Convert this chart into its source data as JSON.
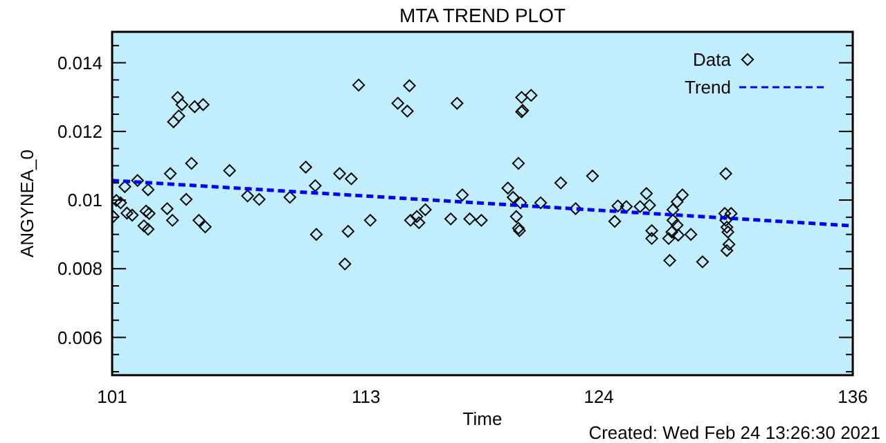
{
  "chart_data": {
    "type": "scatter",
    "title": "MTA TREND PLOT",
    "xlabel": "Time",
    "ylabel": "ANGYNEA_0",
    "annotations": [
      "Created: Wed Feb 24 13:26:30 2021"
    ],
    "xlim": [
      101,
      136
    ],
    "xticks": [
      101,
      113,
      124,
      136
    ],
    "ylim": [
      0.0049,
      0.0149
    ],
    "yticks": [
      {
        "value": 0.005,
        "label": null
      },
      {
        "value": 0.0055,
        "label": null
      },
      0.006,
      {
        "value": 0.0065,
        "label": null
      },
      {
        "value": 0.007,
        "label": null
      },
      {
        "value": 0.0075,
        "label": null
      },
      0.008,
      {
        "value": 0.0085,
        "label": null
      },
      {
        "value": 0.009,
        "label": null
      },
      {
        "value": 0.0095,
        "label": null
      },
      0.01,
      {
        "value": 0.0105,
        "label": null
      },
      {
        "value": 0.011,
        "label": null
      },
      {
        "value": 0.0115,
        "label": null
      },
      0.012,
      {
        "value": 0.0125,
        "label": null
      },
      {
        "value": 0.013,
        "label": null
      },
      {
        "value": 0.0135,
        "label": null
      },
      0.014,
      {
        "value": 0.0145,
        "label": null
      }
    ],
    "grid": false,
    "legend": "top right",
    "series": [
      {
        "name": "Data",
        "marker": "diamond",
        "color": "#000000",
        "x": [
          101.05,
          101.2,
          101.4,
          101.6,
          101.7,
          101.95,
          102.2,
          102.5,
          102.6,
          102.7,
          102.7,
          102.75,
          103.6,
          103.85,
          103.75,
          103.9,
          104.15,
          104.1,
          104.3,
          104.75,
          104.5,
          104.9,
          105.3,
          105.1,
          105.4,
          106.55,
          107.4,
          107.95,
          109.4,
          110.15,
          110.6,
          110.65,
          111.75,
          112.3,
          112.15,
          112.0,
          112.65,
          113.2,
          114.5,
          114.95,
          115.05,
          115.1,
          115.4,
          115.5,
          115.8,
          117.0,
          117.3,
          117.55,
          117.9,
          118.45,
          119.7,
          119.95,
          120.2,
          120.1,
          120.2,
          120.25,
          120.3,
          120.35,
          120.35,
          120.4,
          120.8,
          121.25,
          122.2,
          122.9,
          123.7,
          124.75,
          124.9,
          125.3,
          125.95,
          126.25,
          126.4,
          126.5,
          126.5,
          127.35,
          127.3,
          127.45,
          127.5,
          127.5,
          127.7,
          127.7,
          127.75,
          127.95,
          128.35,
          128.9,
          130.0,
          129.95,
          130.25,
          130.0,
          130.05,
          130.1,
          130.15,
          130.05
        ],
        "values": [
          0.00952,
          0.00999,
          0.00992,
          0.01039,
          0.00962,
          0.00956,
          0.01057,
          0.00925,
          0.00968,
          0.00915,
          0.0103,
          0.00961,
          0.00975,
          0.00941,
          0.01077,
          0.01228,
          0.01245,
          0.01299,
          0.01278,
          0.01107,
          0.01002,
          0.01272,
          0.01278,
          0.00941,
          0.00922,
          0.01086,
          0.01012,
          0.01002,
          0.01008,
          0.01096,
          0.01042,
          0.009,
          0.01077,
          0.01062,
          0.00909,
          0.00814,
          0.01335,
          0.00941,
          0.01282,
          0.01259,
          0.01333,
          0.00941,
          0.00952,
          0.00934,
          0.00972,
          0.00945,
          0.01282,
          0.01015,
          0.00945,
          0.00941,
          0.01035,
          0.01008,
          0.01107,
          0.00952,
          0.00918,
          0.00911,
          0.00992,
          0.01299,
          0.01257,
          0.01261,
          0.01305,
          0.00992,
          0.0105,
          0.00975,
          0.0107,
          0.00938,
          0.00983,
          0.00981,
          0.00981,
          0.01019,
          0.00985,
          0.00911,
          0.00888,
          0.00824,
          0.00888,
          0.00907,
          0.00941,
          0.00972,
          0.00995,
          0.00927,
          0.00898,
          0.01015,
          0.009,
          0.0082,
          0.01077,
          0.00961,
          0.00961,
          0.00941,
          0.00921,
          0.00907,
          0.00871,
          0.00853
        ]
      },
      {
        "name": "Trend",
        "type": "line",
        "marker": "none",
        "line_style": "dashed",
        "color": "#0000ff",
        "x": [
          101,
          136
        ],
        "values": [
          0.01057,
          0.00925
        ]
      }
    ]
  }
}
